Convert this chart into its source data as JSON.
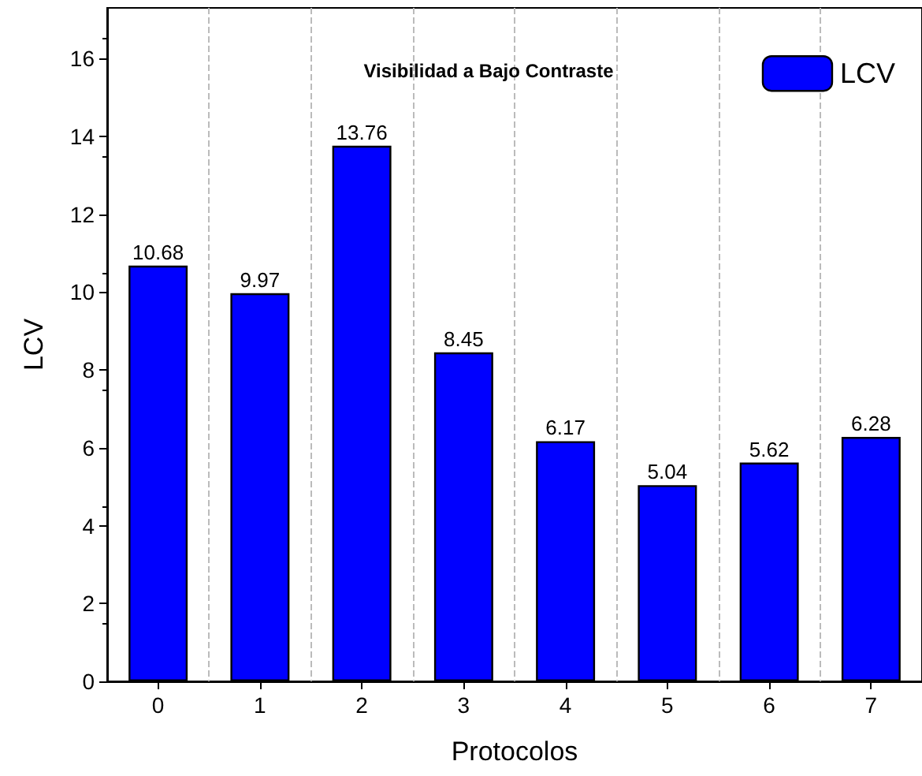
{
  "chart_data": {
    "type": "bar",
    "title": "Visibilidad a Bajo Contraste",
    "xlabel": "Protocolos",
    "ylabel": "LCV",
    "categories": [
      "0",
      "1",
      "2",
      "3",
      "4",
      "5",
      "6",
      "7"
    ],
    "series": [
      {
        "name": "LCV",
        "color": "#0000ff",
        "values": [
          10.68,
          9.97,
          13.76,
          8.45,
          6.17,
          5.04,
          5.62,
          6.28
        ]
      }
    ],
    "ylim": [
      0,
      17.3
    ],
    "yticks": [
      0,
      2,
      4,
      6,
      8,
      10,
      12,
      14,
      16
    ],
    "grid": "x",
    "legend": "top right",
    "data_labels": true
  }
}
